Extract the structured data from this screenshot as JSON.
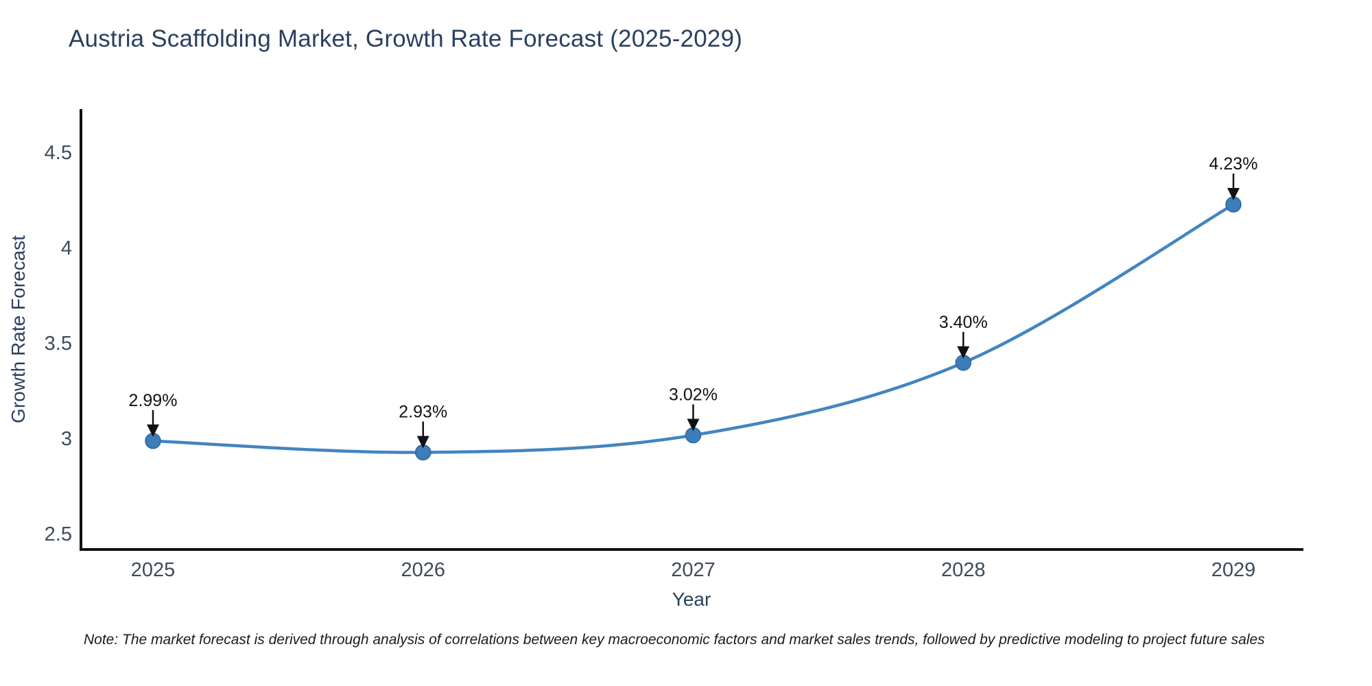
{
  "note": "Note: The market forecast is derived through analysis of correlations between key macroeconomic factors and market sales trends, followed by predictive modeling to project future sales",
  "chart_data": {
    "type": "line",
    "title": "Austria Scaffolding Market, Growth Rate Forecast (2025-2029)",
    "xlabel": "Year",
    "ylabel": "Growth Rate Forecast",
    "categories": [
      "2025",
      "2026",
      "2027",
      "2028",
      "2029"
    ],
    "series": [
      {
        "name": "Growth Rate Forecast",
        "values": [
          2.99,
          2.93,
          3.02,
          3.4,
          4.23
        ]
      }
    ],
    "point_labels": [
      "2.99%",
      "2.93%",
      "3.02%",
      "3.40%",
      "4.23%"
    ],
    "yticks": [
      4.5,
      4,
      3.5,
      3,
      2.5
    ],
    "ylim": [
      2.42,
      4.73
    ],
    "line_shape": "spline",
    "grid": false,
    "legend_position": "none",
    "colors": {
      "line": "#4285c0",
      "marker_fill": "#3d7db9",
      "marker_border": "#30679b",
      "axis_line": "#111111",
      "title_text": "#2a3f5f",
      "tick_text": "#3f4a5c",
      "annotation": "#111111",
      "background": "#ffffff"
    }
  }
}
